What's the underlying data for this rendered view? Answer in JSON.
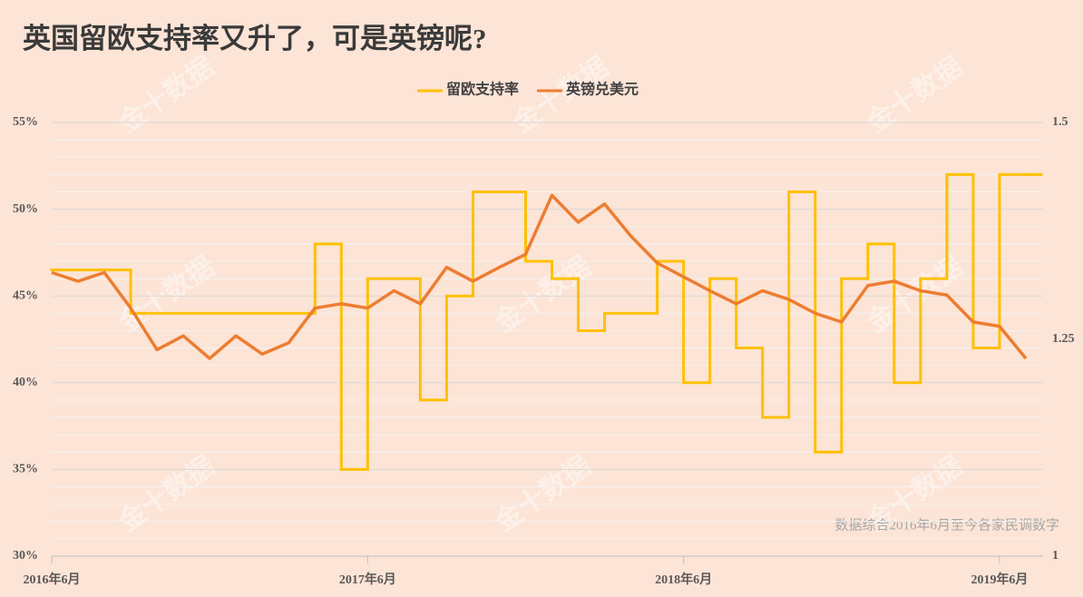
{
  "chart_data": {
    "type": "line",
    "title": "英国留欧支持率又升了，可是英镑呢?",
    "note": "数据综合2016年6月至今各家民调数字",
    "watermark": "金十数据",
    "xlim": [
      "2016-06",
      "2019-08"
    ],
    "xticks": [
      {
        "value": "2016-06",
        "label": "2016年6月"
      },
      {
        "value": "2017-06",
        "label": "2017年6月"
      },
      {
        "value": "2018-06",
        "label": "2018年6月"
      },
      {
        "value": "2019-06",
        "label": "2019年6月"
      }
    ],
    "ylim": [
      30,
      55
    ],
    "yticks": [
      {
        "value": 30,
        "label": "30%"
      },
      {
        "value": 35,
        "label": "35%"
      },
      {
        "value": 40,
        "label": "40%"
      },
      {
        "value": 45,
        "label": "45%"
      },
      {
        "value": 50,
        "label": "50%"
      },
      {
        "value": 55,
        "label": "55%"
      }
    ],
    "y2lim": [
      1,
      1.5
    ],
    "y2ticks": [
      1,
      1.25,
      1.5
    ],
    "grid": true,
    "legend": "top",
    "series": [
      {
        "name": "留欧支持率",
        "color": "#ffc000",
        "step": true,
        "x": [
          "2016-06",
          "2016-09",
          "2017-04",
          "2017-05",
          "2017-06",
          "2017-08",
          "2017-09",
          "2017-10",
          "2017-12",
          "2018-01",
          "2018-02",
          "2018-03",
          "2018-05",
          "2018-06",
          "2018-07",
          "2018-08",
          "2018-09",
          "2018-10",
          "2018-11",
          "2018-12",
          "2019-01",
          "2019-02",
          "2019-03",
          "2019-04",
          "2019-05",
          "2019-06",
          "2019-07"
        ],
        "values": [
          46.5,
          44,
          48,
          35,
          46,
          39,
          45,
          51,
          47,
          46,
          43,
          44,
          47,
          40,
          46,
          42,
          38,
          51,
          36,
          46,
          48,
          40,
          46,
          52,
          42,
          52,
          52
        ]
      },
      {
        "name": "英镑兑美元",
        "color": "#ed7d31",
        "axis": "y2",
        "x": [
          "2016-06",
          "2016-07",
          "2016-08",
          "2016-09",
          "2016-10",
          "2016-11",
          "2016-12",
          "2017-01",
          "2017-02",
          "2017-03",
          "2017-04",
          "2017-05",
          "2017-06",
          "2017-07",
          "2017-08",
          "2017-09",
          "2017-10",
          "2017-11",
          "2017-12",
          "2018-01",
          "2018-02",
          "2018-03",
          "2018-04",
          "2018-05",
          "2018-06",
          "2018-07",
          "2018-08",
          "2018-09",
          "2018-10",
          "2018-11",
          "2018-12",
          "2019-01",
          "2019-02",
          "2019-03",
          "2019-04",
          "2019-05",
          "2019-06",
          "2019-07"
        ],
        "values": [
          1.327,
          1.317,
          1.327,
          1.286,
          1.238,
          1.254,
          1.228,
          1.254,
          1.233,
          1.246,
          1.286,
          1.291,
          1.286,
          1.306,
          1.291,
          1.333,
          1.317,
          1.333,
          1.348,
          1.416,
          1.385,
          1.406,
          1.369,
          1.338,
          1.322,
          1.306,
          1.291,
          1.306,
          1.296,
          1.28,
          1.27,
          1.312,
          1.317,
          1.306,
          1.301,
          1.27,
          1.265,
          1.228
        ]
      }
    ]
  }
}
